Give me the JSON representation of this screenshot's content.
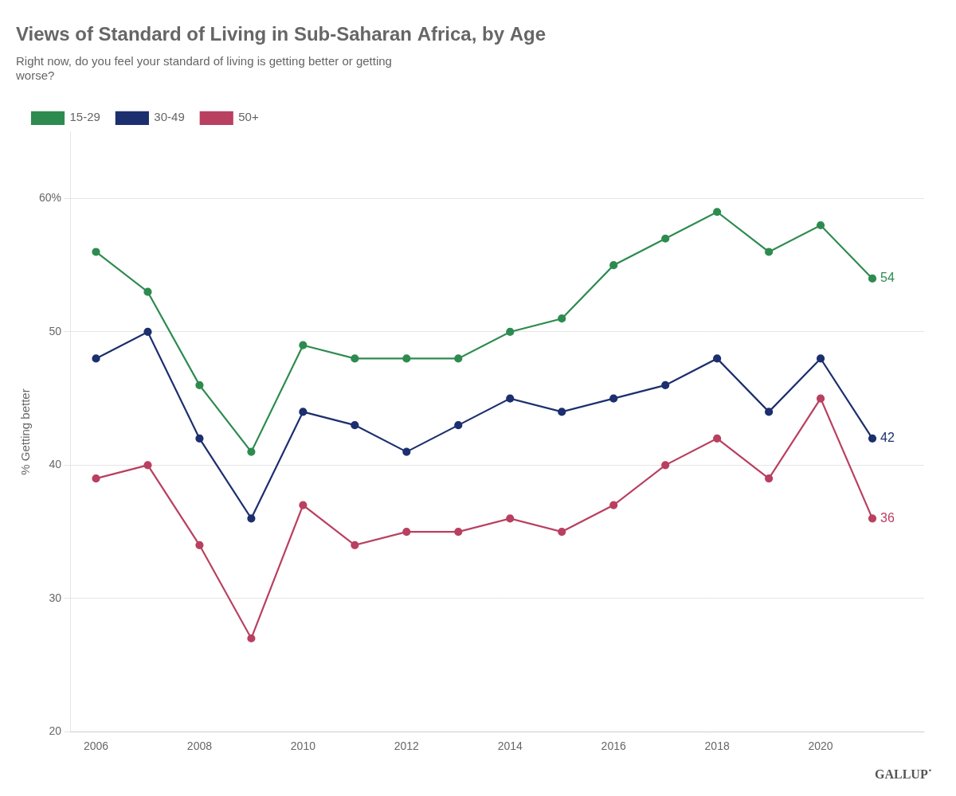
{
  "chart_data": {
    "type": "line",
    "title": "Views of Standard of Living in Sub-Saharan Africa, by Age",
    "subtitle": [
      "Right now, do you feel your standard of living is getting better or getting",
      "worse?"
    ],
    "ylabel": "% Getting better",
    "x": [
      2006,
      2007,
      2008,
      2009,
      2010,
      2011,
      2012,
      2013,
      2014,
      2015,
      2016,
      2017,
      2018,
      2019,
      2020,
      2021
    ],
    "series": [
      {
        "name": "15-29",
        "color": "#2e8b50",
        "values": [
          56,
          53,
          46,
          41,
          49,
          48,
          48,
          48,
          50,
          51,
          55,
          57,
          59,
          56,
          58,
          54
        ]
      },
      {
        "name": "30-49",
        "color": "#1c2f6e",
        "values": [
          48,
          50,
          42,
          36,
          44,
          43,
          41,
          43,
          45,
          44,
          45,
          46,
          48,
          44,
          48,
          42
        ]
      },
      {
        "name": "50+",
        "color": "#b94060",
        "values": [
          39,
          40,
          34,
          27,
          37,
          34,
          35,
          35,
          36,
          35,
          37,
          40,
          42,
          39,
          45,
          36
        ]
      }
    ],
    "xlim": [
      2005.5,
      2022.0
    ],
    "xticks": [
      2006,
      2008,
      2010,
      2012,
      2014,
      2016,
      2018,
      2020
    ],
    "ylim": [
      20,
      65
    ],
    "yticks": [
      20,
      30,
      40,
      50,
      {
        "value": 60,
        "label": "60%"
      }
    ],
    "annotations": [
      {
        "text": "54",
        "x": 2021,
        "y": 54,
        "color": "#2e8b50"
      },
      {
        "text": "42",
        "x": 2021,
        "y": 42,
        "color": "#1c2f6e"
      },
      {
        "text": "36",
        "x": 2021,
        "y": 36,
        "color": "#b94060"
      }
    ],
    "credit": "GALLUP˙",
    "marker": "circle",
    "grid": "y",
    "legend": "top left"
  }
}
